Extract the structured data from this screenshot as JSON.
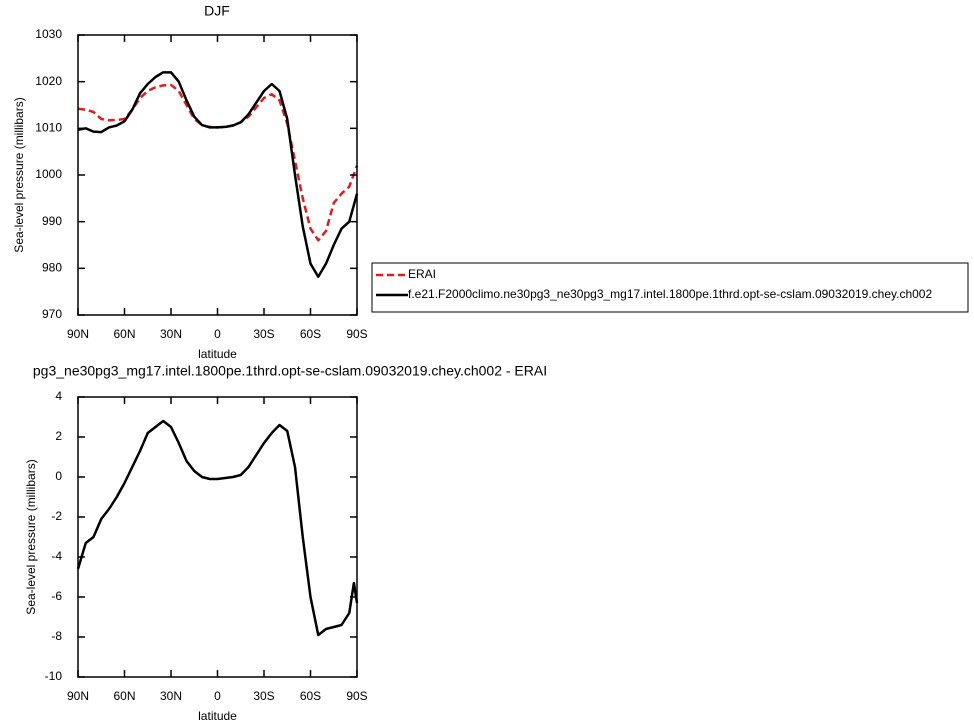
{
  "chart_data": [
    {
      "type": "line",
      "title": "DJF",
      "x_label": "latitude",
      "y_label": "Sea-level pressure (millibars)",
      "x": [
        90,
        85,
        80,
        75,
        70,
        65,
        60,
        55,
        50,
        45,
        40,
        35,
        30,
        25,
        20,
        15,
        10,
        5,
        0,
        -5,
        -10,
        -15,
        -20,
        -25,
        -30,
        -35,
        -40,
        -45,
        -50,
        -55,
        -60,
        -65,
        -70,
        -75,
        -80,
        -85,
        -90
      ],
      "series": [
        {
          "name": "ERAI",
          "color": "#e41a1c",
          "dashed": true,
          "values": [
            1014.2,
            1014,
            1013.5,
            1012,
            1011.7,
            1011.8,
            1012,
            1014,
            1016.5,
            1018,
            1018.8,
            1019.2,
            1019.3,
            1018,
            1015,
            1012,
            1010.7,
            1010.3,
            1010.2,
            1010.3,
            1010.6,
            1011.3,
            1012.5,
            1014.5,
            1016.5,
            1017.3,
            1016,
            1011,
            1003,
            995,
            988.5,
            986,
            988,
            994,
            996,
            997.5,
            1002
          ]
        },
        {
          "name": "f.e21.F2000climo.ne30pg3_ne30pg3_mg17.intel.1800pe.1thrd.opt-se-cslam.09032019.chey.ch002",
          "color": "#000000",
          "dashed": false,
          "values": [
            1009.7,
            1010,
            1009.3,
            1009.2,
            1010.2,
            1010.6,
            1011.5,
            1014,
            1017.5,
            1019.5,
            1021,
            1022,
            1022,
            1020,
            1016,
            1012.5,
            1010.7,
            1010.2,
            1010.2,
            1010.3,
            1010.6,
            1011.3,
            1013,
            1015.5,
            1018,
            1019.5,
            1018,
            1012,
            1000,
            989,
            981,
            978.2,
            981,
            985,
            988.5,
            990,
            996
          ]
        }
      ],
      "xlim": [
        90,
        -90
      ],
      "xticks": [
        {
          "value": 90,
          "label": "90N"
        },
        {
          "value": 60,
          "label": "60N"
        },
        {
          "value": 30,
          "label": "30N"
        },
        0,
        {
          "value": -30,
          "label": "30S"
        },
        {
          "value": -60,
          "label": "60S"
        },
        {
          "value": -90,
          "label": "90S"
        }
      ],
      "ylim": [
        970,
        1030
      ],
      "yticks": [
        970,
        980,
        990,
        1000,
        1010,
        1020,
        1030
      ],
      "legend": "right"
    },
    {
      "type": "line",
      "title": "pg3_ne30pg3_mg17.intel.1800pe.1thrd.opt-se-cslam.09032019.chey.ch002 - ERAI",
      "x_label": "latitude",
      "y_label": "Sea-level pressure (millibars)",
      "x": [
        90,
        85,
        80,
        75,
        70,
        65,
        60,
        55,
        50,
        45,
        40,
        35,
        30,
        25,
        20,
        15,
        10,
        5,
        0,
        -5,
        -10,
        -15,
        -20,
        -25,
        -30,
        -35,
        -40,
        -45,
        -50,
        -55,
        -60,
        -65,
        -70,
        -75,
        -80,
        -85,
        -88,
        -90
      ],
      "series": [
        {
          "name": null,
          "color": "#000000",
          "dashed": false,
          "values": [
            -4.6,
            -3.3,
            -3,
            -2.1,
            -1.6,
            -1,
            -0.3,
            0.5,
            1.3,
            2.2,
            2.5,
            2.8,
            2.5,
            1.7,
            0.8,
            0.3,
            0,
            -0.1,
            -0.1,
            -0.05,
            0,
            0.1,
            0.5,
            1.1,
            1.7,
            2.2,
            2.6,
            2.3,
            0.5,
            -3,
            -6,
            -7.9,
            -7.6,
            -7.5,
            -7.4,
            -6.8,
            -5.3,
            -6.3
          ]
        }
      ],
      "xlim": [
        90,
        -90
      ],
      "xticks": [
        {
          "value": 90,
          "label": "90N"
        },
        {
          "value": 60,
          "label": "60N"
        },
        {
          "value": 30,
          "label": "30N"
        },
        0,
        {
          "value": -30,
          "label": "30S"
        },
        {
          "value": -60,
          "label": "60S"
        },
        {
          "value": -90,
          "label": "90S"
        }
      ],
      "ylim": [
        -10,
        4
      ],
      "yticks": [
        -10,
        -8,
        -6,
        -4,
        -2,
        0,
        2,
        4
      ]
    }
  ]
}
